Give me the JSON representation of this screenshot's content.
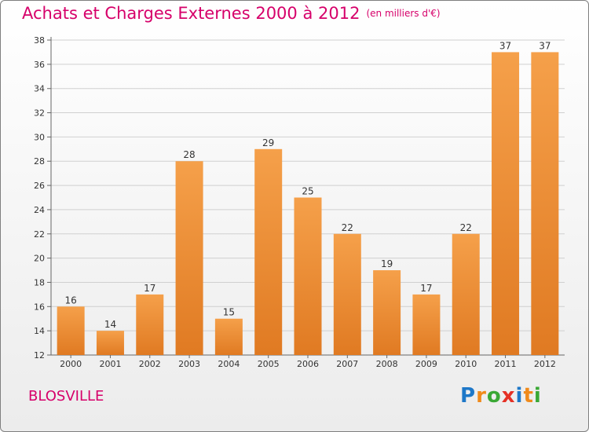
{
  "header": {
    "title": "Achats et Charges Externes 2000 à 2012",
    "unit": "(en milliers d'€)"
  },
  "footer": {
    "commune": "BLOSVILLE",
    "brand": [
      "P",
      "r",
      "o",
      "x",
      "i",
      "t",
      "i"
    ]
  },
  "colors": {
    "accent": "#d6006a",
    "bar_light": "#f5a04a",
    "bar_dark": "#e07a22",
    "grid": "#d0d0d0",
    "brand": [
      "#1e78c8",
      "#f08a1a",
      "#3aa835",
      "#e53125",
      "#1e78c8",
      "#f08a1a",
      "#3aa835"
    ]
  },
  "chart_data": {
    "type": "bar",
    "categories": [
      "2000",
      "2001",
      "2002",
      "2003",
      "2004",
      "2005",
      "2006",
      "2007",
      "2008",
      "2009",
      "2010",
      "2011",
      "2012"
    ],
    "values": [
      16,
      14,
      17,
      28,
      15,
      29,
      25,
      22,
      19,
      17,
      22,
      37,
      37
    ],
    "labels": [
      "16",
      "14",
      "17",
      "28",
      "15",
      "29",
      "25",
      "22",
      "19",
      "17",
      "22",
      "37",
      "37"
    ],
    "yticks": [
      "12",
      "14",
      "16",
      "18",
      "20",
      "22",
      "24",
      "26",
      "28",
      "30",
      "32",
      "34",
      "36",
      "38"
    ],
    "ylim": [
      12,
      38
    ],
    "grid": true,
    "legend": "none"
  }
}
